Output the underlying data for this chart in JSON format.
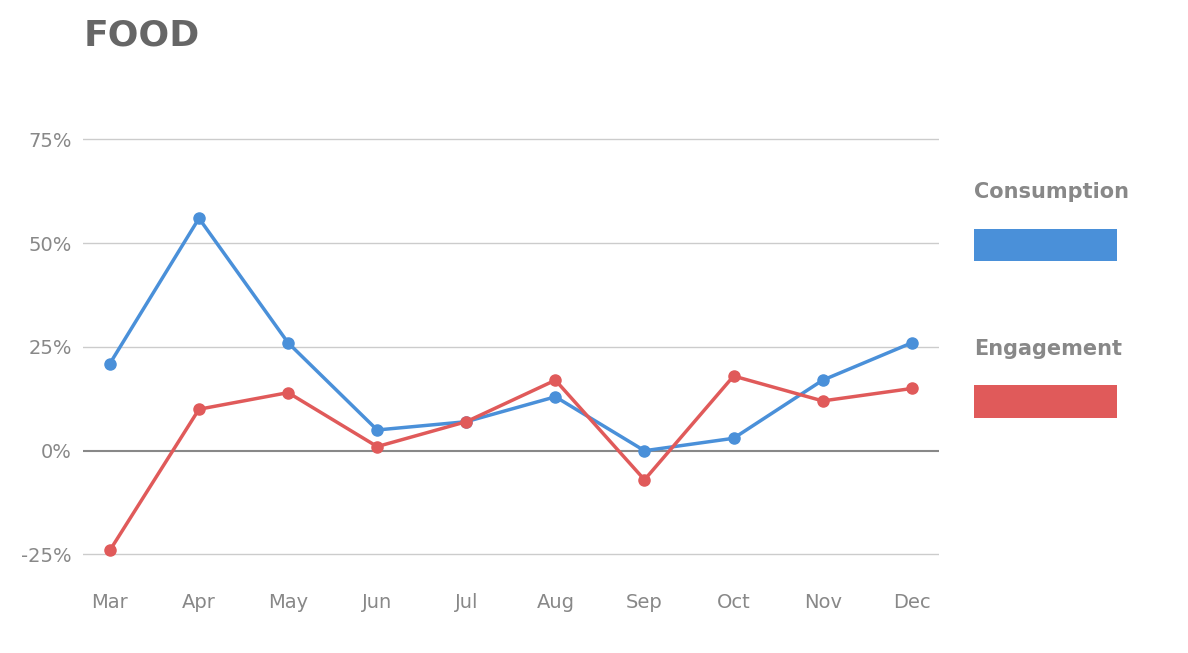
{
  "title": "FOOD",
  "months": [
    "Mar",
    "Apr",
    "May",
    "Jun",
    "Jul",
    "Aug",
    "Sep",
    "Oct",
    "Nov",
    "Dec"
  ],
  "consumption": [
    21,
    56,
    26,
    5,
    7,
    13,
    0,
    3,
    17,
    26
  ],
  "engagement": [
    -24,
    10,
    14,
    1,
    7,
    17,
    -7,
    18,
    12,
    15
  ],
  "consumption_color": "#4A90D9",
  "engagement_color": "#E05A5A",
  "background_color": "#ffffff",
  "ylim": [
    -33,
    85
  ],
  "yticks": [
    -25,
    0,
    25,
    50,
    75
  ],
  "ytick_labels": [
    "-25%",
    "0%",
    "25%",
    "50%",
    "75%"
  ],
  "title_fontsize": 26,
  "title_color": "#666666",
  "tick_color": "#888888",
  "legend_consumption": "Consumption",
  "legend_engagement": "Engagement",
  "legend_fontsize": 15,
  "grid_color": "#cccccc",
  "zero_line_color": "#888888",
  "marker_size": 8,
  "line_width": 2.5
}
